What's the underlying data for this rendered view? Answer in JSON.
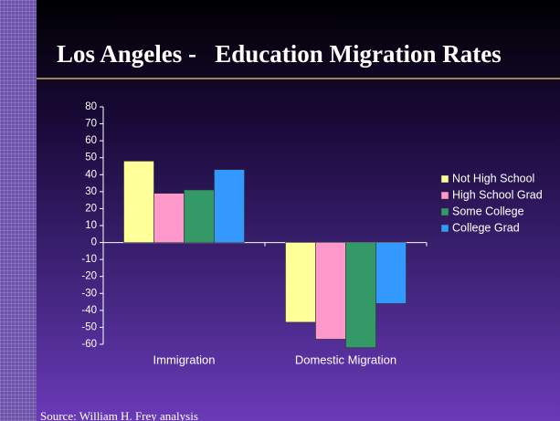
{
  "chart_data": {
    "type": "bar",
    "title": "Los Angeles -   Education Migration Rates",
    "source": "Source: William H. Frey analysis",
    "categories": [
      "Immigration",
      "Domestic Migration"
    ],
    "series": [
      {
        "name": "Not High School",
        "color": "#ffff99",
        "values": [
          48,
          -47
        ]
      },
      {
        "name": "High School Grad",
        "color": "#ff99cc",
        "values": [
          29,
          -57
        ]
      },
      {
        "name": "Some College",
        "color": "#339966",
        "values": [
          31,
          -62
        ]
      },
      {
        "name": "College Grad",
        "color": "#3399ff",
        "values": [
          43,
          -36
        ]
      }
    ],
    "ylim": [
      -60,
      80
    ],
    "yticks": [
      80,
      70,
      60,
      50,
      40,
      30,
      20,
      10,
      0,
      -10,
      -20,
      -30,
      -40,
      -50,
      -60
    ],
    "legend": "right"
  }
}
